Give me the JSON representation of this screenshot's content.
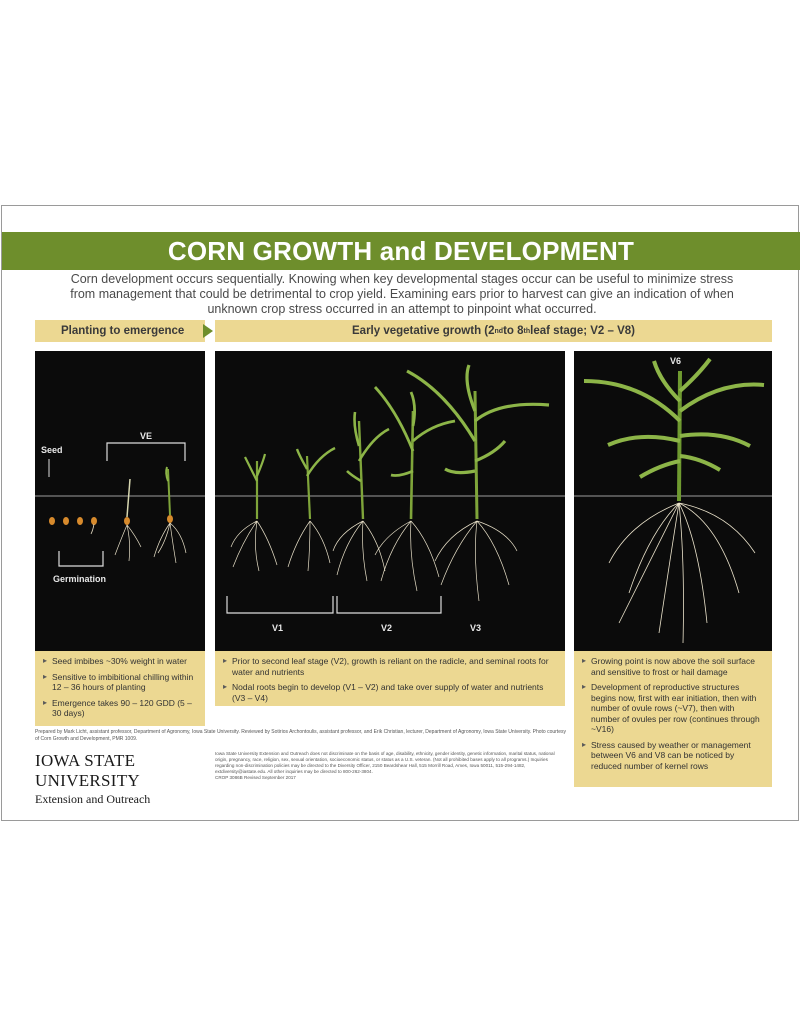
{
  "header": {
    "title": "CORN GROWTH and DEVELOPMENT"
  },
  "intro": "Corn development occurs sequentially. Knowing when key developmental stages occur can be useful to minimize stress from management that could be detrimental to crop yield. Examining ears prior to harvest can give an indication of when unknown crop stress occurred in an attempt to pinpoint what occurred.",
  "stages": {
    "left_label": "Planting to emergence",
    "right_label_pre": "Early vegetative growth (2",
    "right_sup1": "nd",
    "right_mid": " to 8",
    "right_sup2": "th",
    "right_post": " leaf stage; V2 – V8)"
  },
  "panel1": {
    "seed": "Seed",
    "ve": "VE",
    "germination": "Germination"
  },
  "panel2": {
    "v1": "V1",
    "v2": "V2",
    "v3": "V3"
  },
  "panel3": {
    "v6": "V6"
  },
  "notes": {
    "left": [
      "Seed imbibes ~30% weight in water",
      "Sensitive to imbibitional chilling within 12 – 36 hours of planting",
      "Emergence takes 90 – 120 GDD (5 – 30 days)"
    ],
    "middle": [
      "Prior to second leaf stage (V2), growth is reliant on the radicle, and seminal roots for water and nutrients",
      "Nodal roots begin to develop (V1 – V2) and take over supply of water and nutrients (V3 – V4)"
    ],
    "right": [
      "Growing point is now above the soil surface and sensitive to frost or hail damage",
      "Development of reproductive structures begins now, first with ear initiation, then with number of ovule rows (~V7), then with number of ovules per row (continues through ~V16)",
      "Stress caused by weather or management between V6 and V8 can be noticed by reduced number of kernel rows"
    ]
  },
  "footer": {
    "credits": "Prepared by Mark Licht, assistant professor, Department of Agronomy, Iowa State University. Reviewed by Sotirios Archontoulis, assistant professor, and Erik Christian, lecturer, Department of Agronomy, Iowa State University. Photo courtesy of Corn Growth and Development, PMR 1009.",
    "university": "IOWA STATE UNIVERSITY",
    "unit": "Extension and Outreach",
    "legal": "Iowa State University Extension and Outreach does not discriminate on the basis of age, disability, ethnicity, gender identity, genetic information, marital status, national origin, pregnancy, race, religion, sex, sexual orientation, socioeconomic status, or status as a U.S. veteran. (Not all prohibited bases apply to all programs.) Inquiries regarding non-discrimination policies may be directed to the Diversity Officer, 2150 Beardshear Hall, 515 Morrill Road, Ames, Iowa 50011, 515-294-1482, extdiversity@iastate.edu. All other inquiries may be directed to 800-262-3804.",
    "code": "CROP 3086B   Revised   September 2017"
  }
}
